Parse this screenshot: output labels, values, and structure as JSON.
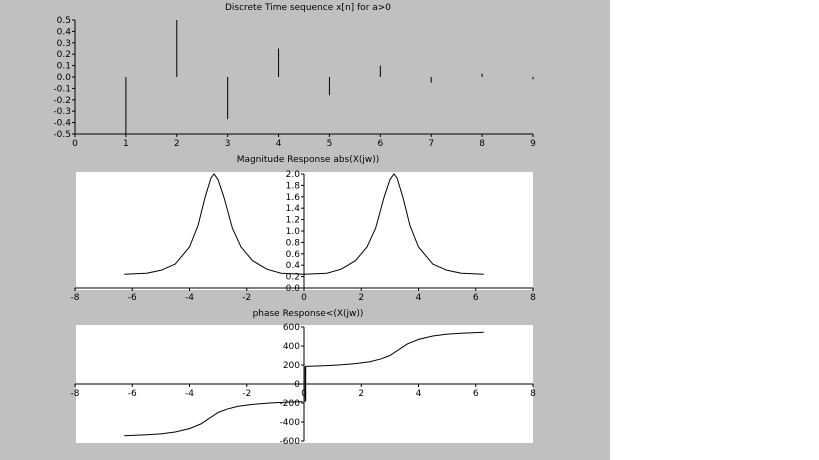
{
  "figure": {
    "background": "#c0c0c0",
    "plot_background": "#ffffff",
    "line_color": "#000000"
  },
  "chart_data": [
    {
      "type": "bar",
      "title": "Discrete Time sequence x[n] for a>0",
      "xlim": [
        0,
        9
      ],
      "ylim": [
        -0.5,
        0.5
      ],
      "xticks": [
        "0",
        "1",
        "2",
        "3",
        "4",
        "5",
        "6",
        "7",
        "8",
        "9"
      ],
      "yticks": [
        "0.5",
        "0.4",
        "0.3",
        "0.2",
        "0.1",
        "0.0",
        "-0.1",
        "-0.2",
        "-0.3",
        "-0.4",
        "-0.5"
      ],
      "x": [
        1,
        2,
        3,
        4,
        5,
        6,
        7,
        8,
        9
      ],
      "values": [
        -0.5,
        0.5,
        -0.37,
        0.25,
        -0.16,
        0.1,
        -0.05,
        0.03,
        -0.02
      ],
      "grid": false
    },
    {
      "type": "line",
      "title": "Magnitude Response abs(X(jw))",
      "xlim": [
        -8,
        8
      ],
      "ylim": [
        0,
        2
      ],
      "xticks": [
        "-8",
        "-6",
        "-4",
        "-2",
        "0",
        "2",
        "4",
        "6",
        "8"
      ],
      "yticks": [
        "2.0",
        "1.8",
        "1.6",
        "1.4",
        "1.2",
        "1.0",
        "0.8",
        "0.6",
        "0.4",
        "0.2",
        "0.0"
      ],
      "x": [
        -6.28,
        -5.5,
        -5.0,
        -4.5,
        -4.0,
        -3.7,
        -3.45,
        -3.25,
        -3.14,
        -3.0,
        -2.8,
        -2.5,
        -2.2,
        -1.8,
        -1.3,
        -0.8,
        0,
        0.8,
        1.3,
        1.8,
        2.2,
        2.5,
        2.8,
        3.0,
        3.14,
        3.25,
        3.45,
        3.7,
        4.0,
        4.5,
        5.0,
        5.5,
        6.28
      ],
      "y": [
        0.24,
        0.26,
        0.31,
        0.42,
        0.72,
        1.1,
        1.6,
        1.93,
        2.0,
        1.9,
        1.6,
        1.05,
        0.72,
        0.48,
        0.33,
        0.26,
        0.24,
        0.26,
        0.33,
        0.48,
        0.72,
        1.05,
        1.6,
        1.9,
        2.0,
        1.93,
        1.6,
        1.1,
        0.72,
        0.42,
        0.31,
        0.26,
        0.24
      ],
      "grid": false
    },
    {
      "type": "line",
      "title": "phase Response<(X(jw))",
      "xlim": [
        -8,
        8
      ],
      "ylim": [
        -600,
        600
      ],
      "xticks": [
        "-8",
        "-6",
        "-4",
        "-2",
        "0",
        "2",
        "4",
        "6",
        "8"
      ],
      "yticks": [
        "600",
        "400",
        "200",
        "0",
        "-200",
        "-400",
        "-600"
      ],
      "x": [
        -6.28,
        -5.5,
        -5.0,
        -4.5,
        -4.0,
        -3.6,
        -3.3,
        -3.0,
        -2.7,
        -2.3,
        -1.8,
        -1.2,
        -0.6,
        -0.05,
        0.05,
        0.6,
        1.2,
        1.8,
        2.3,
        2.7,
        3.0,
        3.3,
        3.6,
        4.0,
        4.5,
        5.0,
        5.5,
        6.28
      ],
      "y": [
        -545,
        -535,
        -525,
        -505,
        -470,
        -420,
        -360,
        -300,
        -265,
        -235,
        -215,
        -200,
        -190,
        -185,
        185,
        190,
        200,
        215,
        235,
        265,
        300,
        360,
        420,
        470,
        505,
        525,
        535,
        545
      ],
      "grid": false
    }
  ]
}
